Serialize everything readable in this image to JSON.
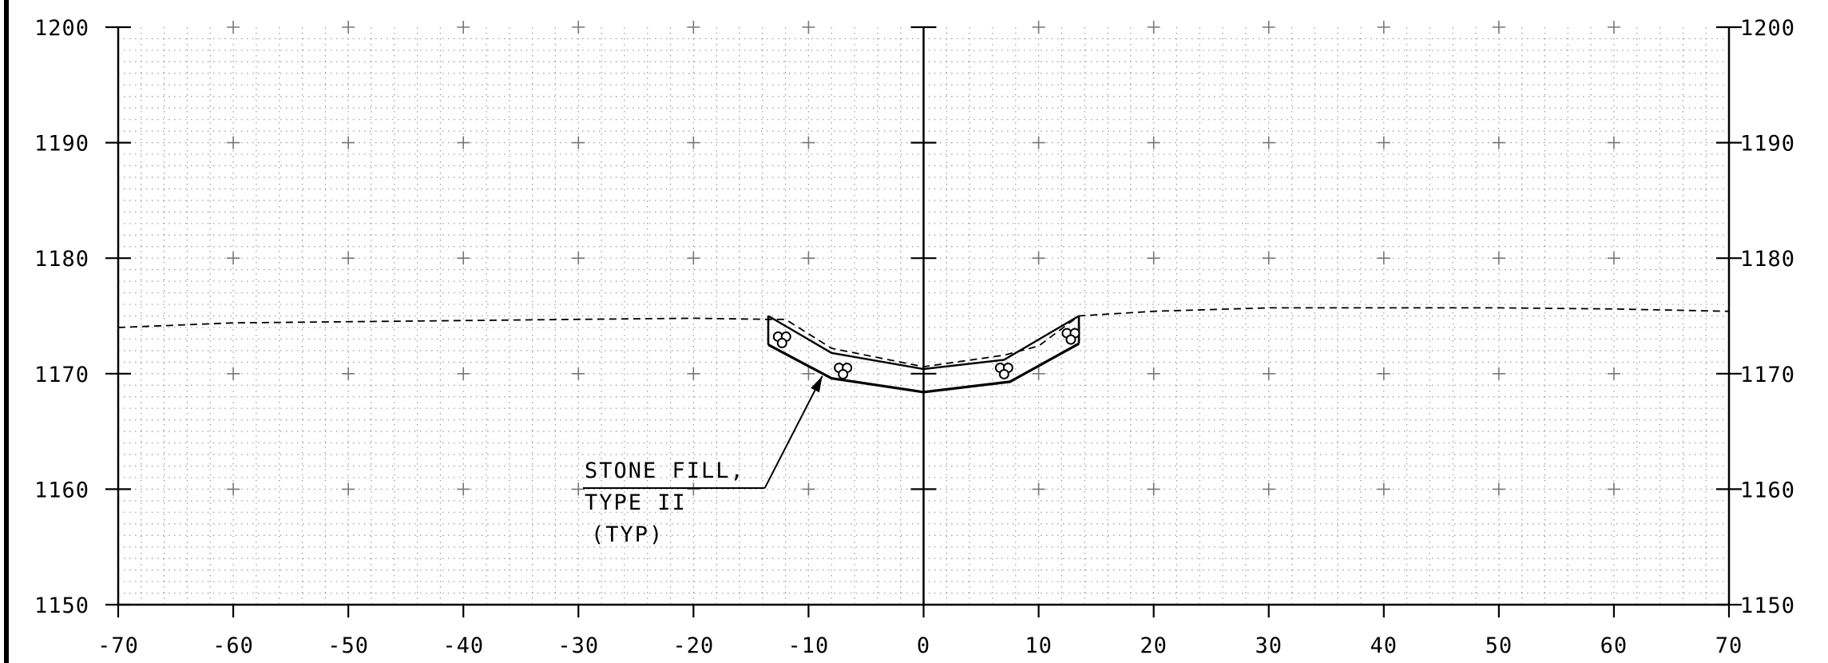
{
  "section": {
    "x_range": [
      -70,
      70
    ],
    "y_range": [
      1150,
      1200
    ],
    "x_ticks": [
      "-70",
      "-60",
      "-50",
      "-40",
      "-30",
      "-20",
      "-10",
      "0",
      "10",
      "20",
      "30",
      "40",
      "50",
      "60",
      "70"
    ],
    "y_ticks_left": [
      "1150",
      "1160",
      "1170",
      "1180",
      "1190",
      "1200"
    ],
    "y_ticks_right": [
      "1150",
      "1160",
      "1170",
      "1180",
      "1190",
      "1200"
    ],
    "grid": "dotted minor grid with + marks at major intersections",
    "existing_ground": [
      [
        -70,
        1174.0
      ],
      [
        -60,
        1174.4
      ],
      [
        -40,
        1174.6
      ],
      [
        -30,
        1174.7
      ],
      [
        -20,
        1174.8
      ],
      [
        -13.5,
        1174.7
      ],
      [
        -12,
        1174.7
      ],
      [
        -8,
        1172.2
      ],
      [
        0,
        1170.6
      ],
      [
        7,
        1171.6
      ],
      [
        10,
        1172.4
      ],
      [
        13.5,
        1175.0
      ],
      [
        20,
        1175.4
      ],
      [
        30,
        1175.7
      ],
      [
        40,
        1175.7
      ],
      [
        50,
        1175.7
      ],
      [
        60,
        1175.6
      ],
      [
        70,
        1175.4
      ]
    ],
    "finished_surface": [
      [
        -13.5,
        1175.0
      ],
      [
        -8,
        1171.8
      ],
      [
        0,
        1170.4
      ],
      [
        7,
        1171.2
      ],
      [
        13.5,
        1175.0
      ]
    ],
    "stone_fill_bottom": [
      [
        -13.5,
        1172.5
      ],
      [
        -8,
        1169.6
      ],
      [
        0,
        1168.4
      ],
      [
        7.5,
        1169.3
      ],
      [
        13.5,
        1172.6
      ]
    ],
    "stone_symbols": [
      [
        -12.3,
        1173.0
      ],
      [
        -7,
        1170.3
      ],
      [
        7,
        1170.3
      ],
      [
        12.8,
        1173.3
      ]
    ],
    "callout": {
      "lines": [
        "STONE FILL,",
        "TYPE II",
        "(TYP)"
      ],
      "arrow_target": [
        -8.8,
        1169.8
      ],
      "leader_start": [
        -13.8,
        1160.1
      ]
    }
  }
}
